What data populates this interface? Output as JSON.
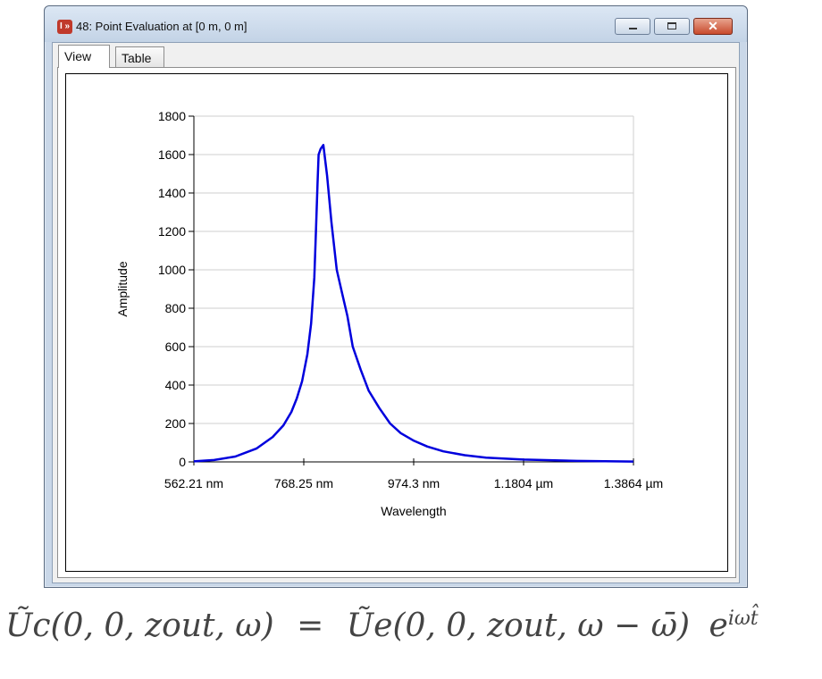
{
  "window": {
    "title": "48: Point Evaluation at [0 m, 0 m]",
    "icon": "app-icon",
    "icon_glyph": "I »",
    "controls": {
      "minimize": "minimize-icon",
      "maximize": "maximize-icon",
      "close": "✕"
    }
  },
  "tabs": [
    {
      "label": "View",
      "active": true
    },
    {
      "label": "Table",
      "active": false
    }
  ],
  "chart_data": {
    "type": "line",
    "title": "",
    "xlabel": "Wavelength",
    "ylabel": "Amplitude",
    "x_ticks": [
      "562.21 nm",
      "768.25 nm",
      "974.3 nm",
      "1.1804 µm",
      "1.3864 µm"
    ],
    "y_ticks": [
      "0",
      "200",
      "400",
      "600",
      "800",
      "1000",
      "1200",
      "1400",
      "1600",
      "1800"
    ],
    "xlim_nm": [
      562.21,
      1386.4
    ],
    "ylim": [
      0,
      1800
    ],
    "grid": "horizontal",
    "series": [
      {
        "color": "#0000dd",
        "x_nm": [
          562,
          600,
          640,
          680,
          710,
          730,
          745,
          755,
          765,
          775,
          782,
          788,
          791,
          794,
          796,
          800,
          805,
          812,
          820,
          830,
          840,
          850,
          860,
          875,
          890,
          910,
          930,
          950,
          975,
          1000,
          1030,
          1070,
          1110,
          1180,
          1280,
          1386
        ],
        "y": [
          3,
          10,
          28,
          70,
          130,
          190,
          260,
          330,
          420,
          560,
          720,
          960,
          1200,
          1450,
          1600,
          1630,
          1650,
          1490,
          1250,
          1000,
          880,
          760,
          600,
          480,
          370,
          280,
          200,
          150,
          110,
          80,
          55,
          35,
          22,
          12,
          5,
          2
        ]
      }
    ]
  },
  "equation": {
    "lhs": "Ũc(0, 0, zout, ω)",
    "equals": "=",
    "rhs": "Ũe(0, 0, zout, ω − ω̄)",
    "exp_base": "e",
    "exp_sup": "iωt̂"
  }
}
